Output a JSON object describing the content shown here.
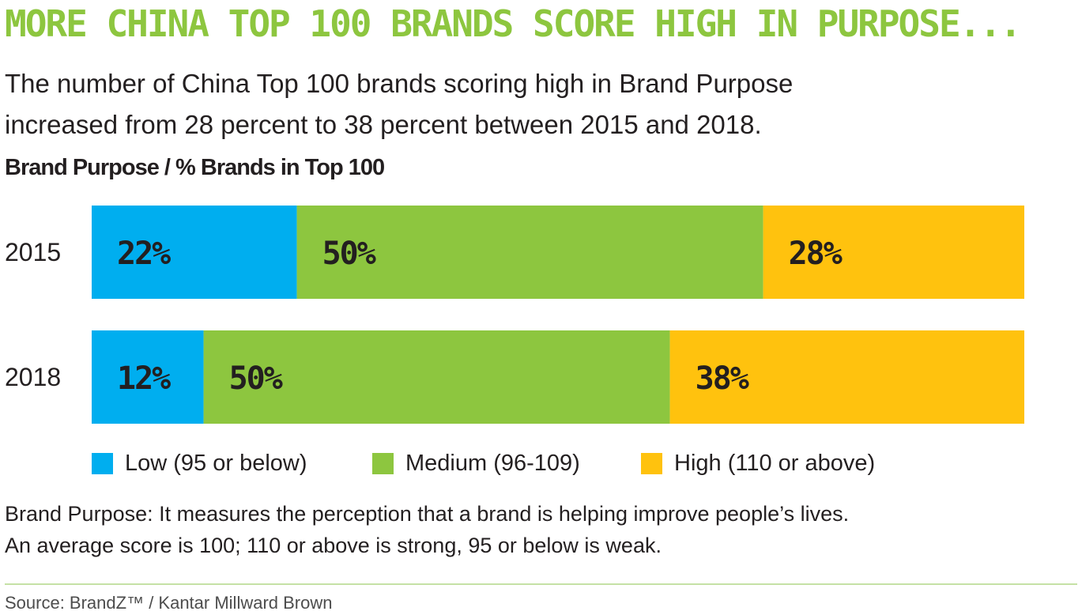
{
  "headline": "MORE CHINA TOP 100 BRANDS SCORE HIGH IN PURPOSE...",
  "subtitle_lines": [
    "The number of China Top 100 brands scoring high in Brand Purpose",
    "increased from 28 percent to 38 percent between 2015 and 2018."
  ],
  "note_lines": [
    "Brand Purpose: It measures the perception that a brand is helping improve people’s lives.",
    "An average score is 100; 110 or above is strong, 95 or below is weak."
  ],
  "source": "Source: BrandZ™ / Kantar Millward Brown",
  "chart_data": {
    "type": "bar",
    "orientation": "horizontal",
    "stacked": true,
    "title": "Brand Purpose / % Brands in Top 100",
    "categories": [
      "2015",
      "2018"
    ],
    "series": [
      {
        "name": "Low (95 or below)",
        "color": "#00aeef",
        "values": [
          22,
          12
        ],
        "labels": [
          "22%",
          "12%"
        ]
      },
      {
        "name": "Medium (96-109)",
        "color": "#8dc63f",
        "values": [
          50,
          50
        ],
        "labels": [
          "50%",
          "50%"
        ]
      },
      {
        "name": "High (110 or above)",
        "color": "#ffc20e",
        "values": [
          28,
          38
        ],
        "labels": [
          "28%",
          "38%"
        ]
      }
    ],
    "xlim": [
      0,
      100
    ],
    "grid": false,
    "legend_position": "bottom"
  }
}
